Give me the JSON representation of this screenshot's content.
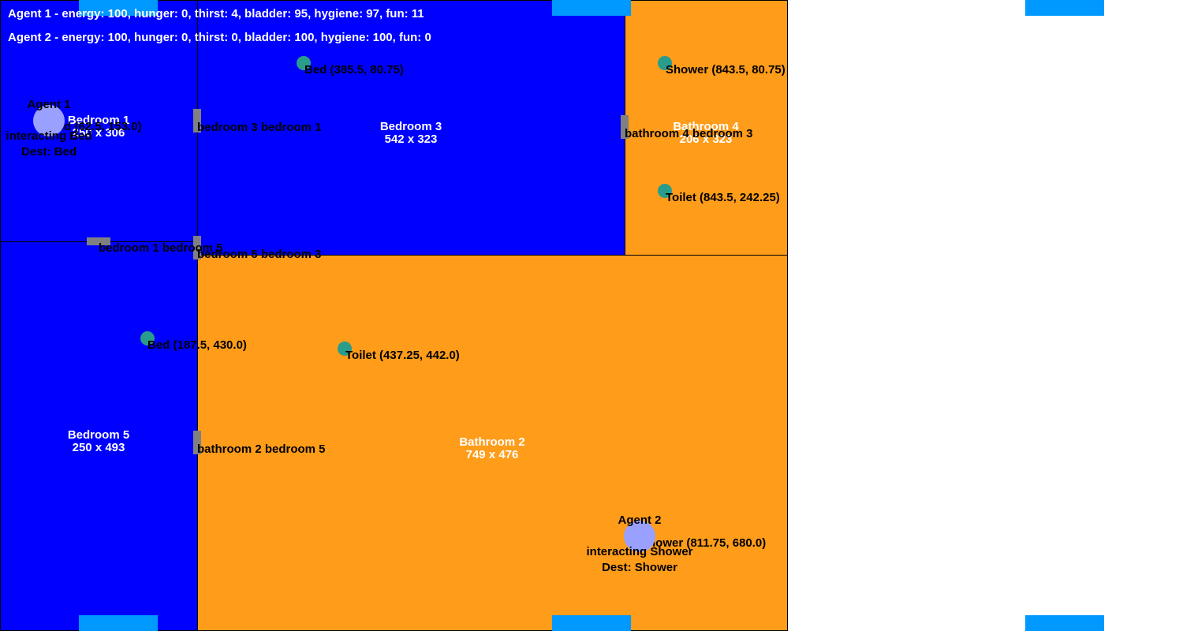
{
  "colors": {
    "bedroom": "#0000ff",
    "bathroom": "#ff9c1a",
    "edge_tab": "#0099ff",
    "door": "#808080",
    "object": "#2a9c8c",
    "agent": "#9aa0ff"
  },
  "status": {
    "agent1": "Agent 1 - energy: 100, hunger: 0, thirst: 4, bladder: 95, hygiene: 97, fun: 11",
    "agent2": "Agent 2 - energy: 100, hunger: 0, thirst: 0, bladder: 100, hygiene: 100, fun: 0"
  },
  "rooms": {
    "bedroom1": {
      "name": "Bedroom 1",
      "size": "250 x 306"
    },
    "bedroom3": {
      "name": "Bedroom 3",
      "size": "542 x 323"
    },
    "bathroom4": {
      "name": "Bathroom 4",
      "size": "206 x 323"
    },
    "bedroom5": {
      "name": "Bedroom 5",
      "size": "250 x 493"
    },
    "bathroom2": {
      "name": "Bathroom 2",
      "size": "749 x 476"
    }
  },
  "doors": {
    "b3_b1": "bedroom 3 bedroom 1",
    "ba4_b3": "bathroom 4 bedroom 3",
    "b1_b5": "bedroom 1 bedroom 5",
    "b5_b3": "bedroom 5 bedroom 3",
    "ba2_b5": "bathroom 2 bedroom 5"
  },
  "objects": {
    "bed_b3": "Bed (385.5, 80.75)",
    "bed_b1": "Bed (62.5, 153.0)",
    "shower_ba4": "Shower (843.5, 80.75)",
    "toilet_ba4": "Toilet (843.5, 242.25)",
    "bed_b5": "Bed (187.5, 430.0)",
    "toilet_ba2": "Toilet (437.25, 442.0)",
    "shower_ba2": "Shower (811.75, 680.0)"
  },
  "agents": {
    "agent1": {
      "name": "Agent 1",
      "state": "interacting Bed",
      "dest": "Dest: Bed"
    },
    "agent2": {
      "name": "Agent 2",
      "state": "interacting Shower",
      "dest": "Dest: Shower"
    }
  }
}
